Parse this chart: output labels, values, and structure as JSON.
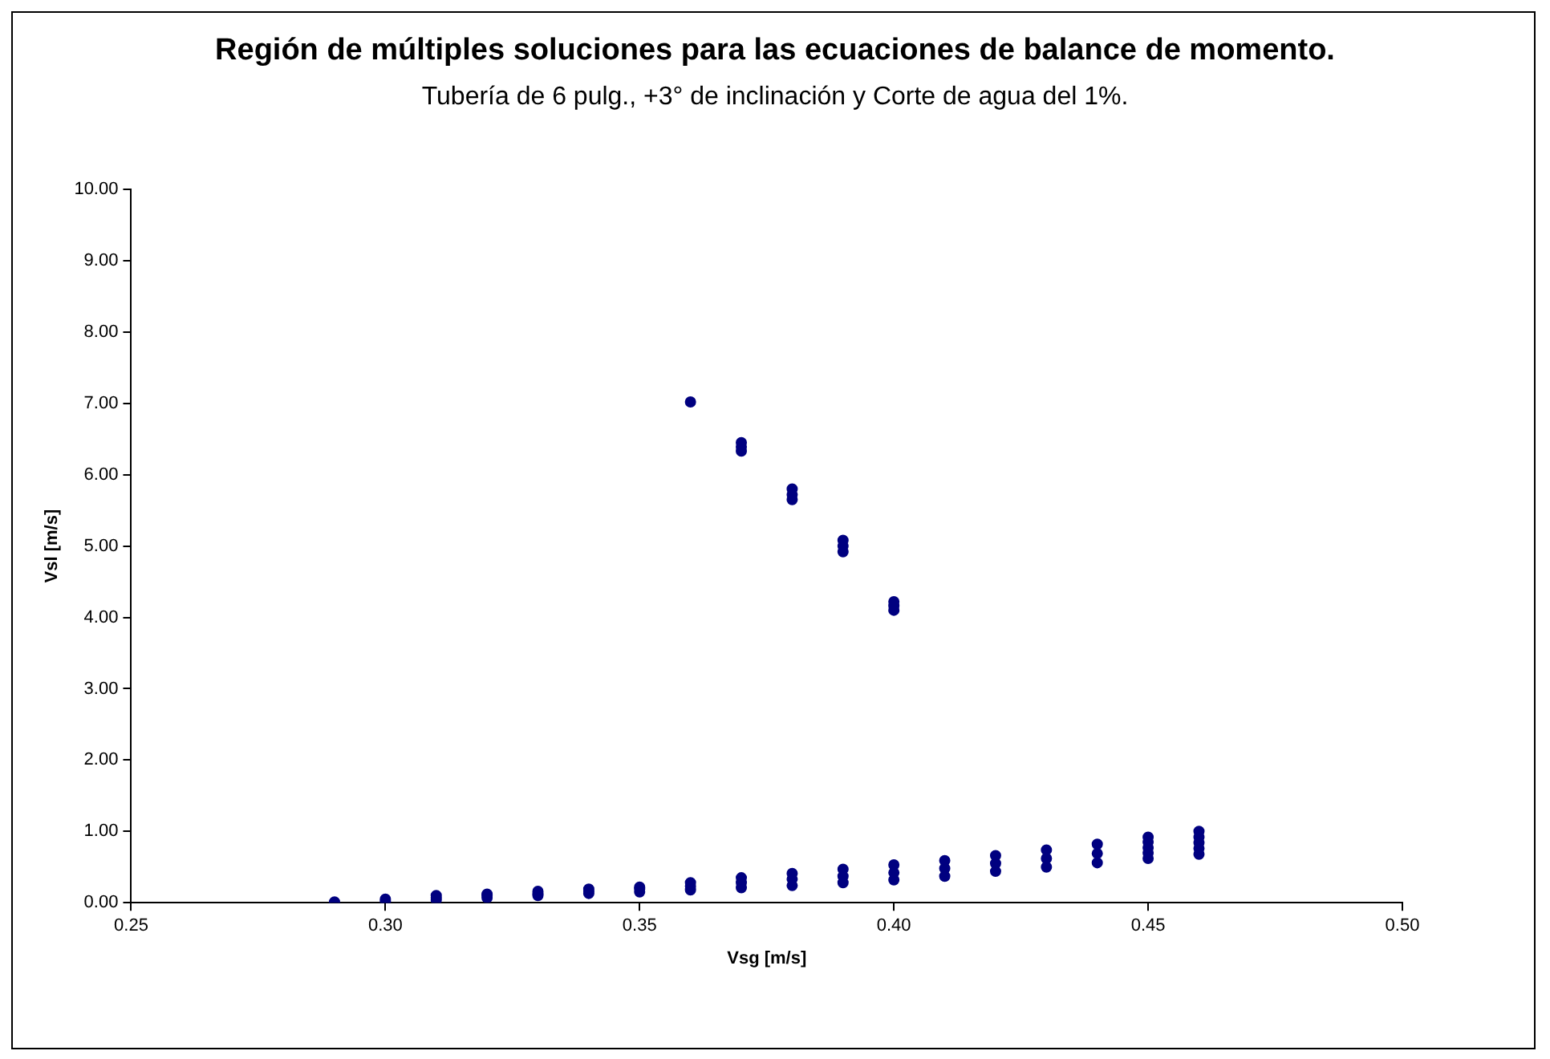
{
  "chart_data": {
    "type": "scatter",
    "title": "Región de múltiples soluciones para las ecuaciones de balance de momento.",
    "subtitle": "Tubería de 6 pulg., +3° de inclinación y Corte de agua del 1%.",
    "xlabel": "Vsg [m/s]",
    "ylabel": "Vsl [m/s]",
    "xlim": [
      0.25,
      0.5
    ],
    "xticks": [
      {
        "value": 0.25,
        "label": "0.25"
      },
      {
        "value": 0.3,
        "label": "0.30"
      },
      {
        "value": 0.35,
        "label": "0.35"
      },
      {
        "value": 0.4,
        "label": "0.40"
      },
      {
        "value": 0.45,
        "label": "0.45"
      },
      {
        "value": 0.5,
        "label": "0.50"
      }
    ],
    "ylim": [
      0,
      10
    ],
    "yticks": [
      {
        "value": 0,
        "label": "0.00"
      },
      {
        "value": 1,
        "label": "1.00"
      },
      {
        "value": 2,
        "label": "2.00"
      },
      {
        "value": 3,
        "label": "3.00"
      },
      {
        "value": 4,
        "label": "4.00"
      },
      {
        "value": 5,
        "label": "5.00"
      },
      {
        "value": 6,
        "label": "6.00"
      },
      {
        "value": 7,
        "label": "7.00"
      },
      {
        "value": 8,
        "label": "8.00"
      },
      {
        "value": 9,
        "label": "9.00"
      },
      {
        "value": 10,
        "label": "10.00"
      }
    ],
    "marker": "circle",
    "legend": false,
    "series": [
      {
        "color": "#000080",
        "x": [
          0.29,
          0.3,
          0.3,
          0.31,
          0.31,
          0.31,
          0.32,
          0.32,
          0.32,
          0.33,
          0.33,
          0.33,
          0.34,
          0.34,
          0.34,
          0.35,
          0.35,
          0.35,
          0.36,
          0.36,
          0.36,
          0.36,
          0.37,
          0.37,
          0.37,
          0.37,
          0.37,
          0.37,
          0.38,
          0.38,
          0.38,
          0.38,
          0.38,
          0.38,
          0.39,
          0.39,
          0.39,
          0.39,
          0.39,
          0.39,
          0.4,
          0.4,
          0.4,
          0.4,
          0.4,
          0.4,
          0.41,
          0.41,
          0.41,
          0.42,
          0.42,
          0.42,
          0.43,
          0.43,
          0.43,
          0.44,
          0.44,
          0.44,
          0.45,
          0.45,
          0.45,
          0.45,
          0.45,
          0.46,
          0.46,
          0.46,
          0.46,
          0.46
        ],
        "values": [
          0.01,
          0.02,
          0.05,
          0.04,
          0.07,
          0.1,
          0.07,
          0.1,
          0.12,
          0.1,
          0.13,
          0.16,
          0.13,
          0.16,
          0.19,
          0.15,
          0.19,
          0.22,
          0.18,
          0.23,
          0.28,
          7.02,
          0.21,
          0.28,
          0.35,
          6.33,
          6.39,
          6.45,
          0.24,
          0.33,
          0.41,
          5.65,
          5.72,
          5.8,
          0.28,
          0.37,
          0.47,
          4.92,
          5.0,
          5.08,
          0.32,
          0.42,
          0.53,
          4.1,
          4.16,
          4.22,
          0.37,
          0.48,
          0.59,
          0.44,
          0.55,
          0.66,
          0.5,
          0.62,
          0.74,
          0.56,
          0.69,
          0.82,
          0.62,
          0.7,
          0.77,
          0.85,
          0.92,
          0.68,
          0.76,
          0.84,
          0.92,
          1.0
        ]
      }
    ]
  }
}
